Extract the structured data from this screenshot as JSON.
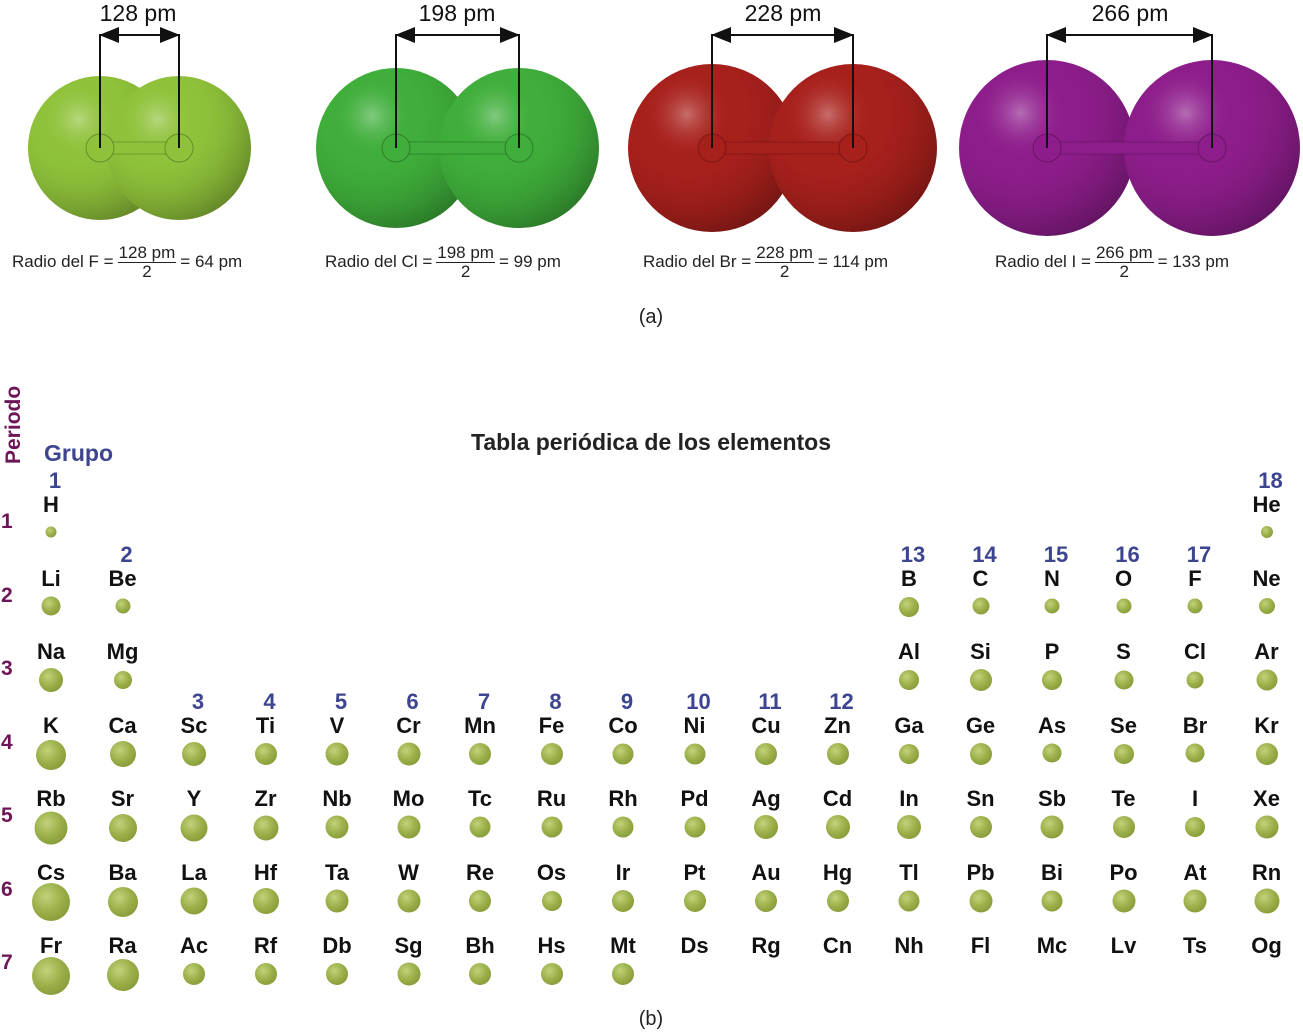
{
  "part_a": {
    "caption": "(a)",
    "molecules": [
      {
        "element": "F",
        "distance": "128 pm",
        "formula_label": "Radio del F =",
        "numerator": "128 pm",
        "denominator": "2",
        "result": "= 64 pm",
        "color": "#8fc23a"
      },
      {
        "element": "Cl",
        "distance": "198 pm",
        "formula_label": "Radio del Cl  =",
        "numerator": "198 pm",
        "denominator": "2",
        "result": "= 99 pm",
        "color": "#3fae3a"
      },
      {
        "element": "Br",
        "distance": "228 pm",
        "formula_label": "Radio del Br  =",
        "numerator": "228 pm",
        "denominator": "2",
        "result": "= 114 pm",
        "color": "#a8201c"
      },
      {
        "element": "I",
        "distance": "266 pm",
        "formula_label": "Radio del I =",
        "numerator": "266 pm",
        "denominator": "2",
        "result": "= 133 pm",
        "color": "#8e1d8c"
      }
    ]
  },
  "part_b": {
    "title": "Tabla periódica de los elementos",
    "axis_period": "Periodo",
    "axis_group": "Grupo",
    "caption": "(b)",
    "groups": [
      "1",
      "2",
      "3",
      "4",
      "5",
      "6",
      "7",
      "8",
      "9",
      "10",
      "11",
      "12",
      "13",
      "14",
      "15",
      "16",
      "17",
      "18"
    ],
    "periods": [
      "1",
      "2",
      "3",
      "4",
      "5",
      "6",
      "7"
    ],
    "elements": [
      [
        "H",
        1,
        1,
        11
      ],
      [
        "He",
        1,
        18,
        12
      ],
      [
        "Li",
        2,
        1,
        19
      ],
      [
        "Be",
        2,
        2,
        15
      ],
      [
        "B",
        2,
        13,
        20
      ],
      [
        "C",
        2,
        14,
        17
      ],
      [
        "N",
        2,
        15,
        15
      ],
      [
        "O",
        2,
        16,
        15
      ],
      [
        "F",
        2,
        17,
        15
      ],
      [
        "Ne",
        2,
        18,
        16
      ],
      [
        "Na",
        3,
        1,
        24
      ],
      [
        "Mg",
        3,
        2,
        18
      ],
      [
        "Al",
        3,
        13,
        20
      ],
      [
        "Si",
        3,
        14,
        22
      ],
      [
        "P",
        3,
        15,
        20
      ],
      [
        "S",
        3,
        16,
        19
      ],
      [
        "Cl",
        3,
        17,
        17
      ],
      [
        "Ar",
        3,
        18,
        21
      ],
      [
        "K",
        4,
        1,
        30
      ],
      [
        "Ca",
        4,
        2,
        26
      ],
      [
        "Sc",
        4,
        3,
        24
      ],
      [
        "Ti",
        4,
        4,
        22
      ],
      [
        "V",
        4,
        5,
        23
      ],
      [
        "Cr",
        4,
        6,
        23
      ],
      [
        "Mn",
        4,
        7,
        22
      ],
      [
        "Fe",
        4,
        8,
        22
      ],
      [
        "Co",
        4,
        9,
        21
      ],
      [
        "Ni",
        4,
        10,
        21
      ],
      [
        "Cu",
        4,
        11,
        22
      ],
      [
        "Zn",
        4,
        12,
        22
      ],
      [
        "Ga",
        4,
        13,
        20
      ],
      [
        "Ge",
        4,
        14,
        22
      ],
      [
        "As",
        4,
        15,
        19
      ],
      [
        "Se",
        4,
        16,
        20
      ],
      [
        "Br",
        4,
        17,
        19
      ],
      [
        "Kr",
        4,
        18,
        22
      ],
      [
        "Rb",
        5,
        1,
        33
      ],
      [
        "Sr",
        5,
        2,
        28
      ],
      [
        "Y",
        5,
        3,
        27
      ],
      [
        "Zr",
        5,
        4,
        25
      ],
      [
        "Nb",
        5,
        5,
        23
      ],
      [
        "Mo",
        5,
        6,
        23
      ],
      [
        "Tc",
        5,
        7,
        21
      ],
      [
        "Ru",
        5,
        8,
        21
      ],
      [
        "Rh",
        5,
        9,
        21
      ],
      [
        "Pd",
        5,
        10,
        21
      ],
      [
        "Ag",
        5,
        11,
        24
      ],
      [
        "Cd",
        5,
        12,
        24
      ],
      [
        "In",
        5,
        13,
        24
      ],
      [
        "Sn",
        5,
        14,
        22
      ],
      [
        "Sb",
        5,
        15,
        23
      ],
      [
        "Te",
        5,
        16,
        22
      ],
      [
        "I",
        5,
        17,
        20
      ],
      [
        "Xe",
        5,
        18,
        23
      ],
      [
        "Cs",
        6,
        1,
        38
      ],
      [
        "Ba",
        6,
        2,
        30
      ],
      [
        "La",
        6,
        3,
        27
      ],
      [
        "Hf",
        6,
        4,
        26
      ],
      [
        "Ta",
        6,
        5,
        23
      ],
      [
        "W",
        6,
        6,
        23
      ],
      [
        "Re",
        6,
        7,
        22
      ],
      [
        "Os",
        6,
        8,
        20
      ],
      [
        "Ir",
        6,
        9,
        22
      ],
      [
        "Pt",
        6,
        10,
        22
      ],
      [
        "Au",
        6,
        11,
        22
      ],
      [
        "Hg",
        6,
        12,
        22
      ],
      [
        "Tl",
        6,
        13,
        21
      ],
      [
        "Pb",
        6,
        14,
        23
      ],
      [
        "Bi",
        6,
        15,
        21
      ],
      [
        "Po",
        6,
        16,
        23
      ],
      [
        "At",
        6,
        17,
        23
      ],
      [
        "Rn",
        6,
        18,
        25
      ],
      [
        "Fr",
        7,
        1,
        38
      ],
      [
        "Ra",
        7,
        2,
        32
      ],
      [
        "Ac",
        7,
        3,
        22
      ],
      [
        "Rf",
        7,
        4,
        22
      ],
      [
        "Db",
        7,
        5,
        22
      ],
      [
        "Sg",
        7,
        6,
        23
      ],
      [
        "Bh",
        7,
        7,
        22
      ],
      [
        "Hs",
        7,
        8,
        22
      ],
      [
        "Mt",
        7,
        9,
        22
      ],
      [
        "Ds",
        7,
        10,
        0
      ],
      [
        "Rg",
        7,
        11,
        0
      ],
      [
        "Cn",
        7,
        12,
        0
      ],
      [
        "Nh",
        7,
        13,
        0
      ],
      [
        "Fl",
        7,
        14,
        0
      ],
      [
        "Mc",
        7,
        15,
        0
      ],
      [
        "Lv",
        7,
        16,
        0
      ],
      [
        "Ts",
        7,
        17,
        0
      ],
      [
        "Og",
        7,
        18,
        0
      ]
    ]
  }
}
